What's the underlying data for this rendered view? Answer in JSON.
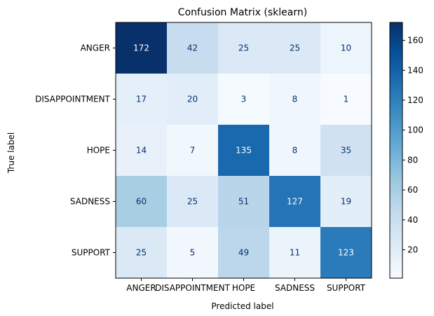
{
  "chart_data": {
    "type": "heatmap",
    "title": "Confusion Matrix (sklearn)",
    "xlabel": "Predicted label",
    "ylabel": "True label",
    "x_categories": [
      "ANGER",
      "DISAPPOINTMENT",
      "HOPE",
      "SADNESS",
      "SUPPORT"
    ],
    "y_categories": [
      "ANGER",
      "DISAPPOINTMENT",
      "HOPE",
      "SADNESS",
      "SUPPORT"
    ],
    "values": [
      [
        172,
        42,
        25,
        25,
        10
      ],
      [
        17,
        20,
        3,
        8,
        1
      ],
      [
        14,
        7,
        135,
        8,
        35
      ],
      [
        60,
        25,
        51,
        127,
        19
      ],
      [
        25,
        5,
        49,
        11,
        123
      ]
    ],
    "colormap": "Blues",
    "color_range": [
      1,
      172
    ],
    "colorbar_ticks": [
      20,
      40,
      60,
      80,
      100,
      120,
      140,
      160
    ],
    "colorbar_tick_labels": [
      "20",
      "40",
      "60",
      "80",
      "100",
      "120",
      "140",
      "160"
    ]
  }
}
